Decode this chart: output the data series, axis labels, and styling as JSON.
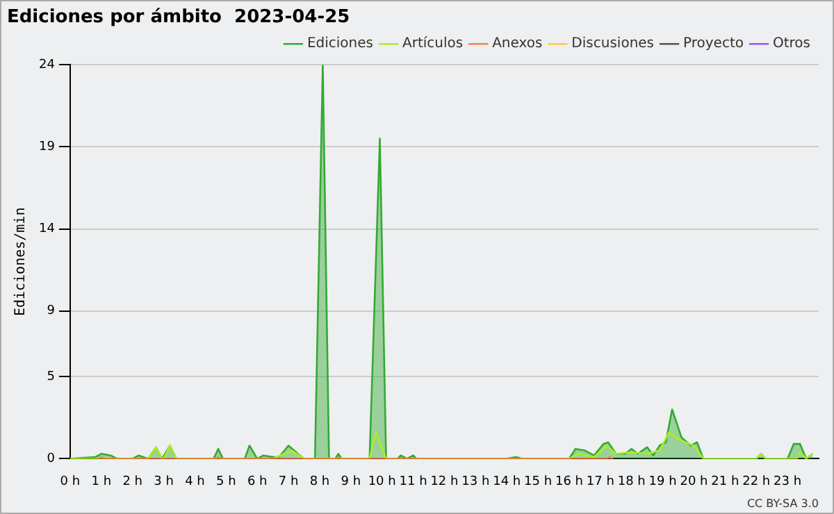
{
  "chart_data": {
    "type": "line",
    "title": "Ediciones por ámbito  2023-04-25",
    "ylabel": "Ediciones/min",
    "xlim": [
      0,
      24
    ],
    "xticks": [
      {
        "value": 0,
        "label": "0 h"
      },
      {
        "value": 1,
        "label": "1 h"
      },
      {
        "value": 2,
        "label": "2 h"
      },
      {
        "value": 3,
        "label": "3 h"
      },
      {
        "value": 4,
        "label": "4 h"
      },
      {
        "value": 5,
        "label": "5 h"
      },
      {
        "value": 6,
        "label": "6 h"
      },
      {
        "value": 7,
        "label": "7 h"
      },
      {
        "value": 8,
        "label": "8 h"
      },
      {
        "value": 9,
        "label": "9 h"
      },
      {
        "value": 10,
        "label": "10 h"
      },
      {
        "value": 11,
        "label": "11 h"
      },
      {
        "value": 12,
        "label": "12 h"
      },
      {
        "value": 13,
        "label": "13 h"
      },
      {
        "value": 14,
        "label": "14 h"
      },
      {
        "value": 15,
        "label": "15 h"
      },
      {
        "value": 16,
        "label": "16 h"
      },
      {
        "value": 17,
        "label": "17 h"
      },
      {
        "value": 18,
        "label": "18 h"
      },
      {
        "value": 19,
        "label": "19 h"
      },
      {
        "value": 20,
        "label": "20 h"
      },
      {
        "value": 21,
        "label": "21 h"
      },
      {
        "value": 22,
        "label": "22 h"
      },
      {
        "value": 23,
        "label": "23 h"
      }
    ],
    "ylim": [
      0,
      24
    ],
    "yticks": [
      0,
      5,
      9,
      14,
      19,
      24
    ],
    "grid": "y",
    "legend": "top right",
    "marker": "none",
    "line_style": "solid",
    "annotations": [
      "CC BY-SA 3.0"
    ],
    "series": [
      {
        "name": "Ediciones",
        "type": "area",
        "color": "#33aa33",
        "x": [
          0,
          0.8,
          1.0,
          1.3,
          1.5,
          2.0,
          2.2,
          2.5,
          2.75,
          2.95,
          3.2,
          3.4,
          4.6,
          4.75,
          4.9,
          5.6,
          5.75,
          6.0,
          6.2,
          6.5,
          6.7,
          7.0,
          7.3,
          7.5,
          7.85,
          8.1,
          8.3,
          8.5,
          8.6,
          8.7,
          9.6,
          9.93,
          10.13,
          10.5,
          10.6,
          10.8,
          11.0,
          11.1,
          14.0,
          14.3,
          14.5,
          16.0,
          16.2,
          16.5,
          16.8,
          17.1,
          17.25,
          17.5,
          17.8,
          18.0,
          18.2,
          18.5,
          18.7,
          18.9,
          19.1,
          19.3,
          19.6,
          19.9,
          20.1,
          20.3,
          22.0,
          22.15,
          22.3,
          23.0,
          23.2,
          23.4,
          23.6,
          23.8
        ],
        "values": [
          0,
          0.1,
          0.3,
          0.2,
          0,
          0,
          0.2,
          0,
          0.7,
          0,
          0.8,
          0,
          0,
          0.6,
          0,
          0,
          0.8,
          0,
          0.2,
          0.1,
          0.1,
          0.8,
          0.3,
          0,
          0,
          24,
          0,
          0,
          0.3,
          0,
          0,
          19.5,
          0,
          0,
          0.2,
          0,
          0.2,
          0,
          0,
          0.1,
          0,
          0,
          0.6,
          0.5,
          0.2,
          0.9,
          1.0,
          0.3,
          0.3,
          0.6,
          0.3,
          0.7,
          0.2,
          0.8,
          1.0,
          3.0,
          1.3,
          0.8,
          1.0,
          0,
          0,
          0.3,
          0,
          0,
          0.9,
          0.9,
          0,
          0.3
        ]
      },
      {
        "name": "Artículos",
        "type": "line",
        "color": "#aaee22",
        "x": [
          0,
          2.5,
          2.75,
          2.95,
          3.0,
          3.2,
          3.4,
          6.5,
          7.1,
          7.5,
          9.6,
          9.8,
          10.13,
          10.5,
          16.0,
          16.3,
          16.8,
          17.2,
          17.5,
          18.0,
          18.5,
          18.9,
          19.2,
          19.6,
          20.0,
          20.3,
          22.0,
          22.15,
          22.3,
          23.3,
          23.4,
          23.6,
          23.8
        ],
        "values": [
          0,
          0,
          0.7,
          0,
          0,
          0.8,
          0,
          0,
          0.5,
          0,
          0,
          1.6,
          0,
          0,
          0,
          0.3,
          0.1,
          0.8,
          0.3,
          0.4,
          0.3,
          0.5,
          1.6,
          1.1,
          0.8,
          0,
          0,
          0.3,
          0,
          0,
          0.4,
          0,
          0.3
        ]
      },
      {
        "name": "Anexos",
        "type": "line",
        "color": "#ff7f3f",
        "x": [
          0.9,
          1.0,
          1.1,
          4.65,
          4.75,
          4.85,
          8.5,
          8.6,
          8.7,
          17.2,
          17.3,
          17.4
        ],
        "values": [
          0,
          0.1,
          0,
          0,
          0.1,
          0,
          0,
          0.1,
          0,
          0,
          0.1,
          0
        ]
      },
      {
        "name": "Discusiones",
        "type": "line",
        "color": "#ffcc33"
      },
      {
        "name": "Proyecto",
        "type": "line",
        "color": "#555555"
      },
      {
        "name": "Otros",
        "type": "line",
        "color": "#9955ff"
      }
    ]
  }
}
